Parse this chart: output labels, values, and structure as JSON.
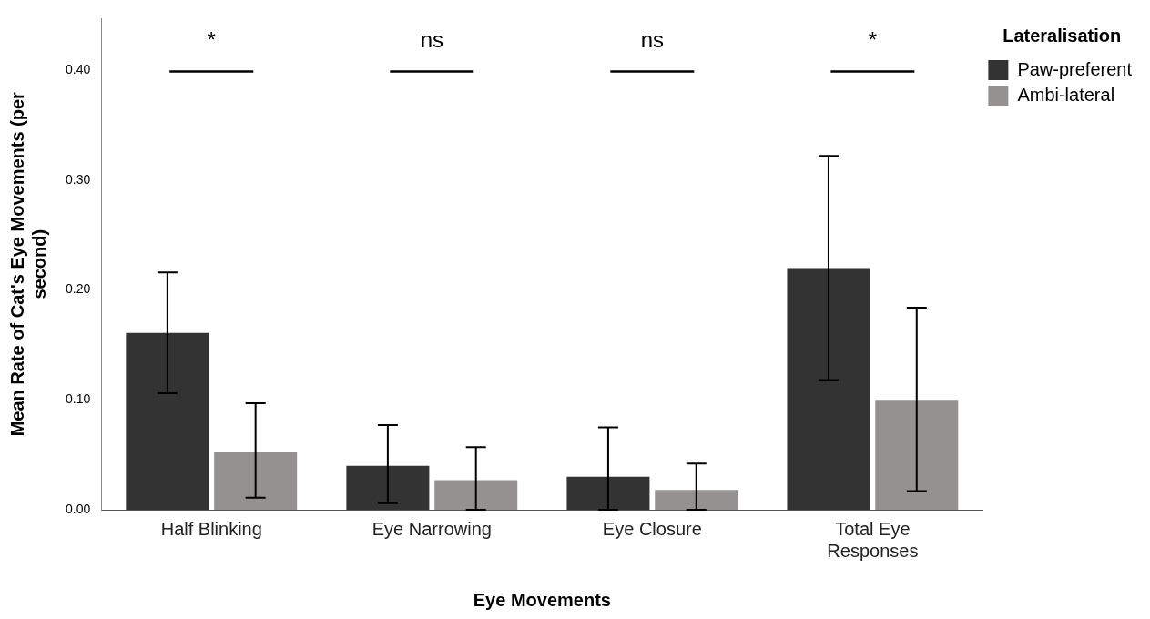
{
  "chart_data": {
    "type": "bar",
    "xlabel": "Eye Movements",
    "ylabel": "Mean Rate of Cat's Eye Movements (per second)",
    "legend_title": "Lateralisation",
    "categories": [
      "Half Blinking",
      "Eye Narrowing",
      "Eye Closure",
      "Total Eye Responses"
    ],
    "series": [
      {
        "name": "Paw-preferent",
        "color": "#333333",
        "values": [
          0.161,
          0.04,
          0.03,
          0.22
        ],
        "errors": [
          [
            0.106,
            0.216
          ],
          [
            0.006,
            0.077
          ],
          [
            0.0,
            0.075
          ],
          [
            0.118,
            0.322
          ]
        ]
      },
      {
        "name": "Ambi-lateral",
        "color": "#959190",
        "values": [
          0.053,
          0.027,
          0.018,
          0.1
        ],
        "errors": [
          [
            0.011,
            0.097
          ],
          [
            0.0,
            0.057
          ],
          [
            0.0,
            0.042
          ],
          [
            0.017,
            0.184
          ]
        ]
      }
    ],
    "ylim": [
      0,
      0.447
    ],
    "yticks": [
      {
        "value": 0,
        "label": "0.00"
      },
      {
        "value": 0.1,
        "label": "0.10"
      },
      {
        "value": 0.2,
        "label": "0.20"
      },
      {
        "value": 0.3,
        "label": "0.30"
      },
      {
        "value": 0.4,
        "label": "0.40"
      }
    ],
    "grid": false,
    "legend": "top right",
    "annotations": [
      "*",
      "ns",
      "ns",
      "*"
    ]
  }
}
